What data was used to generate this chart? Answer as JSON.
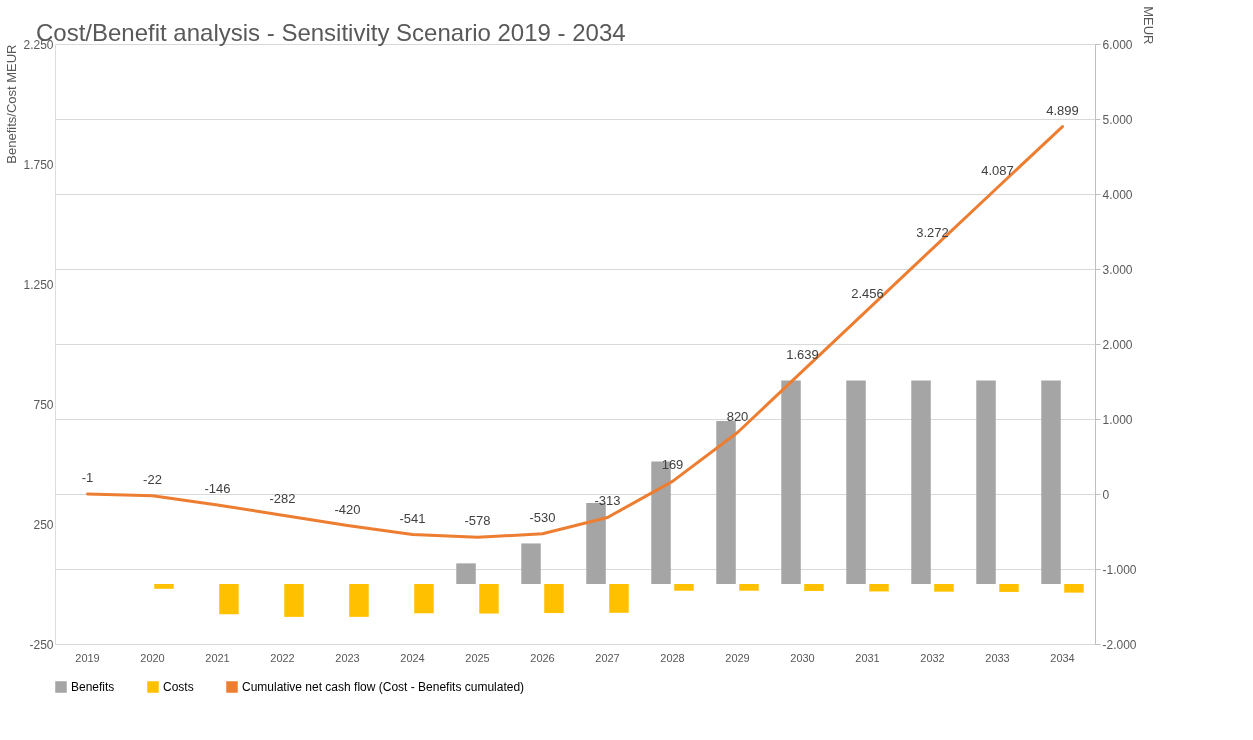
{
  "chart_data": {
    "type": "bar",
    "title": "Cost/Benefit analysis - Sensitivity Scenario 2019 - 2034",
    "ylabel": "Benefits/Cost  MEUR",
    "y2label": "MEUR",
    "categories": [
      "2019",
      "2020",
      "2021",
      "2022",
      "2023",
      "2024",
      "2025",
      "2026",
      "2027",
      "2028",
      "2029",
      "2030",
      "2031",
      "2032",
      "2033",
      "2034"
    ],
    "series": [
      {
        "name": "Benefits",
        "color": "#a5a5a5",
        "values": [
          0,
          0,
          0,
          0,
          0,
          0,
          86,
          169,
          337,
          510,
          679,
          848,
          848,
          848,
          848,
          848
        ]
      },
      {
        "name": "Costs",
        "color": "#ffc000",
        "values": [
          0,
          -20,
          -126,
          -137,
          -137,
          -122,
          -123,
          -121,
          -120,
          -28,
          -28,
          -29,
          -31,
          -32,
          -33,
          -36
        ]
      },
      {
        "name": "Cumulative net cash flow (Cost - Benefits cumulated)",
        "type": "line",
        "axis": "y2",
        "color": "#ed7d31",
        "values": [
          -1,
          -22,
          -146,
          -282,
          -420,
          -541,
          -578,
          -530,
          -313,
          169,
          820,
          1639,
          2456,
          3272,
          4087,
          4899
        ],
        "value_labels": [
          "-1",
          "-22",
          "-146",
          "-282",
          "-420",
          "-541",
          "-578",
          "-530",
          "-313",
          "169",
          "820",
          "1.639",
          "2.456",
          "3.272",
          "4.087",
          "4.899"
        ]
      }
    ],
    "ylim": [
      -250,
      2250
    ],
    "yticks": [
      -250,
      250,
      750,
      {
        "value": 1250,
        "label": "1.250"
      },
      {
        "value": 1750,
        "label": "1.750"
      },
      {
        "value": 2250,
        "label": "2.250"
      }
    ],
    "y2lim": [
      -2000,
      6000
    ],
    "y2ticks": [
      {
        "value": -2000,
        "label": "-2.000"
      },
      {
        "value": -1000,
        "label": "-1.000"
      },
      0,
      {
        "value": 1000,
        "label": "1.000"
      },
      {
        "value": 2000,
        "label": "2.000"
      },
      {
        "value": 3000,
        "label": "3.000"
      },
      {
        "value": 4000,
        "label": "4.000"
      },
      {
        "value": 5000,
        "label": "5.000"
      },
      {
        "value": 6000,
        "label": "6.000"
      }
    ],
    "grid": "y2",
    "legend": "bottom"
  }
}
